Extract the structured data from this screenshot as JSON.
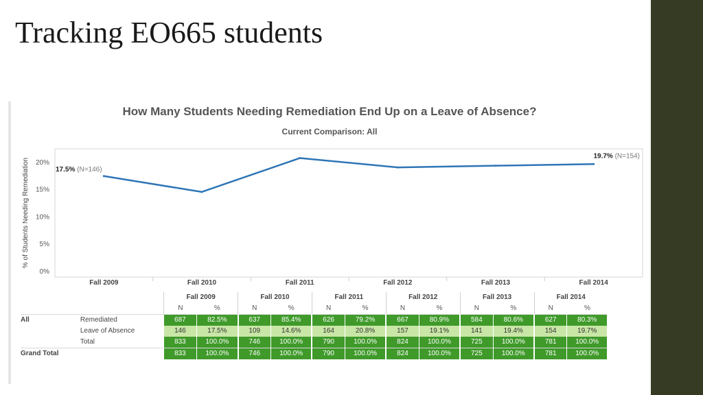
{
  "slide": {
    "title": "Tracking EO665 students"
  },
  "colors": {
    "line": "#2e75b6",
    "sidebar": "#363c23",
    "cell_dark": "#3f9a2a",
    "cell_light": "#c8e6a6"
  },
  "chart_data": {
    "type": "line",
    "title": "How Many Students Needing Remediation End Up on a Leave of Absence?",
    "subtitle": "Current Comparison: All",
    "ylabel": "% of Students Needing Remediation",
    "categories": [
      "Fall 2009",
      "Fall 2010",
      "Fall 2011",
      "Fall 2012",
      "Fall 2013",
      "Fall 2014"
    ],
    "values": [
      17.5,
      14.6,
      20.8,
      19.1,
      19.4,
      19.7
    ],
    "ylim": [
      0,
      22
    ],
    "yticks": [
      "0%",
      "5%",
      "10%",
      "15%",
      "20%"
    ],
    "ytick_values": [
      0,
      5,
      10,
      15,
      20
    ],
    "grid": false,
    "annotations": [
      {
        "index": 0,
        "value_text": "17.5%",
        "n_text": "(N=146)"
      },
      {
        "index": 5,
        "value_text": "19.7%",
        "n_text": "(N=154)"
      }
    ]
  },
  "table": {
    "years": [
      "Fall 2009",
      "Fall 2010",
      "Fall 2011",
      "Fall 2012",
      "Fall 2013",
      "Fall 2014"
    ],
    "subheaders": {
      "n": "N",
      "pct": "%"
    },
    "group_label": "All",
    "rows": [
      {
        "label": "Remediated",
        "style": "dark",
        "n": [
          "687",
          "637",
          "626",
          "667",
          "584",
          "627"
        ],
        "pct": [
          "82.5%",
          "85.4%",
          "79.2%",
          "80.9%",
          "80.6%",
          "80.3%"
        ]
      },
      {
        "label": "Leave of Absence",
        "style": "light",
        "n": [
          "146",
          "109",
          "164",
          "157",
          "141",
          "154"
        ],
        "pct": [
          "17.5%",
          "14.6%",
          "20.8%",
          "19.1%",
          "19.4%",
          "19.7%"
        ]
      },
      {
        "label": "Total",
        "style": "dark",
        "n": [
          "833",
          "746",
          "790",
          "824",
          "725",
          "781"
        ],
        "pct": [
          "100.0%",
          "100.0%",
          "100.0%",
          "100.0%",
          "100.0%",
          "100.0%"
        ]
      }
    ],
    "grand_total": {
      "label": "Grand Total",
      "n": [
        "833",
        "746",
        "790",
        "824",
        "725",
        "781"
      ],
      "pct": [
        "100.0%",
        "100.0%",
        "100.0%",
        "100.0%",
        "100.0%",
        "100.0%"
      ]
    }
  }
}
